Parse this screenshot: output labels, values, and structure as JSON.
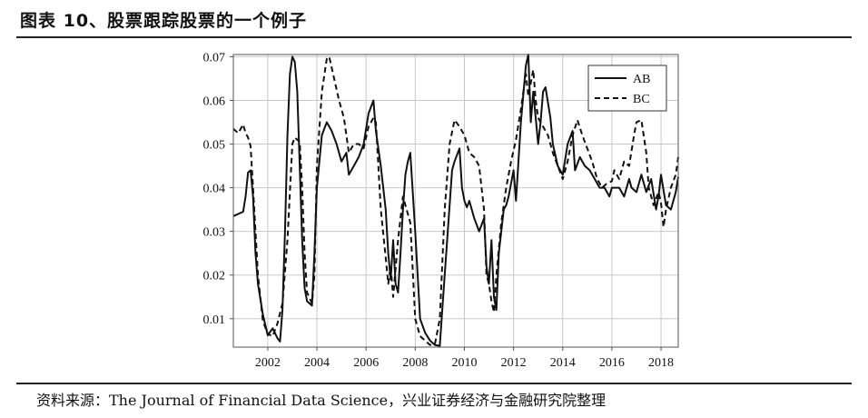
{
  "figure": {
    "title": "图表 10、股票跟踪股票的一个例子",
    "source": "资料来源：The Journal of Financial Data Science，兴业证券经济与金融研究院整理"
  },
  "chart_data": {
    "type": "line",
    "title": "",
    "xlabel": "",
    "ylabel": "",
    "xlim": [
      2000.6,
      2018.7
    ],
    "ylim": [
      0.0035,
      0.0705
    ],
    "x_ticks": [
      "2002",
      "2004",
      "2006",
      "2008",
      "2010",
      "2012",
      "2014",
      "2016",
      "2018"
    ],
    "y_ticks": [
      "0.01",
      "0.02",
      "0.03",
      "0.04",
      "0.05",
      "0.06",
      "0.07"
    ],
    "grid": true,
    "legend_position": "top-right",
    "series": [
      {
        "name": "AB",
        "style": "solid",
        "color": "#111111",
        "x": [
          2000.6,
          2000.8,
          2001.0,
          2001.1,
          2001.2,
          2001.3,
          2001.4,
          2001.5,
          2001.6,
          2001.8,
          2002.0,
          2002.2,
          2002.4,
          2002.5,
          2002.6,
          2002.7,
          2002.8,
          2002.9,
          2003.0,
          2003.1,
          2003.2,
          2003.3,
          2003.4,
          2003.5,
          2003.6,
          2003.8,
          2003.9,
          2004.0,
          2004.2,
          2004.4,
          2004.6,
          2004.8,
          2005.0,
          2005.2,
          2005.3,
          2005.5,
          2005.7,
          2005.9,
          2006.1,
          2006.3,
          2006.4,
          2006.6,
          2006.8,
          2006.9,
          2007.0,
          2007.1,
          2007.2,
          2007.3,
          2007.4,
          2007.5,
          2007.6,
          2007.7,
          2007.8,
          2008.0,
          2008.2,
          2008.4,
          2008.6,
          2008.8,
          2009.0,
          2009.1,
          2009.3,
          2009.5,
          2009.6,
          2009.8,
          2009.9,
          2010.0,
          2010.1,
          2010.2,
          2010.4,
          2010.6,
          2010.8,
          2010.9,
          2011.0,
          2011.1,
          2011.2,
          2011.3,
          2011.4,
          2011.6,
          2011.7,
          2011.8,
          2012.0,
          2012.1,
          2012.3,
          2012.5,
          2012.6,
          2012.7,
          2012.8,
          2012.9,
          2013.0,
          2013.1,
          2013.2,
          2013.3,
          2013.5,
          2013.6,
          2013.8,
          2014.0,
          2014.2,
          2014.4,
          2014.5,
          2014.7,
          2014.9,
          2015.1,
          2015.3,
          2015.5,
          2015.7,
          2015.9,
          2016.0,
          2016.1,
          2016.3,
          2016.5,
          2016.7,
          2016.8,
          2017.0,
          2017.2,
          2017.4,
          2017.6,
          2017.8,
          2017.9,
          2018.0,
          2018.2,
          2018.4,
          2018.6,
          2018.7
        ],
        "y": [
          0.0335,
          0.034,
          0.0345,
          0.038,
          0.0435,
          0.044,
          0.038,
          0.025,
          0.018,
          0.011,
          0.0062,
          0.0078,
          0.0055,
          0.0048,
          0.012,
          0.03,
          0.052,
          0.066,
          0.07,
          0.0688,
          0.062,
          0.045,
          0.028,
          0.017,
          0.014,
          0.013,
          0.025,
          0.04,
          0.052,
          0.055,
          0.053,
          0.05,
          0.046,
          0.048,
          0.043,
          0.045,
          0.047,
          0.05,
          0.057,
          0.06,
          0.053,
          0.045,
          0.035,
          0.025,
          0.019,
          0.028,
          0.018,
          0.016,
          0.025,
          0.035,
          0.043,
          0.046,
          0.048,
          0.03,
          0.01,
          0.0068,
          0.005,
          0.004,
          0.0038,
          0.012,
          0.028,
          0.044,
          0.046,
          0.049,
          0.04,
          0.037,
          0.0355,
          0.037,
          0.033,
          0.03,
          0.033,
          0.022,
          0.018,
          0.028,
          0.015,
          0.012,
          0.025,
          0.035,
          0.036,
          0.038,
          0.044,
          0.037,
          0.055,
          0.068,
          0.0705,
          0.055,
          0.062,
          0.056,
          0.05,
          0.055,
          0.062,
          0.063,
          0.056,
          0.05,
          0.045,
          0.043,
          0.05,
          0.053,
          0.044,
          0.047,
          0.045,
          0.044,
          0.042,
          0.04,
          0.04,
          0.038,
          0.04,
          0.04,
          0.04,
          0.038,
          0.042,
          0.04,
          0.039,
          0.043,
          0.039,
          0.042,
          0.035,
          0.038,
          0.043,
          0.036,
          0.035,
          0.039,
          0.0425
        ]
      },
      {
        "name": "BC",
        "style": "dashed",
        "color": "#111111",
        "x": [
          2000.6,
          2000.8,
          2000.9,
          2001.0,
          2001.1,
          2001.2,
          2001.3,
          2001.4,
          2001.6,
          2001.8,
          2002.0,
          2002.2,
          2002.4,
          2002.6,
          2002.8,
          2003.0,
          2003.1,
          2003.3,
          2003.4,
          2003.5,
          2003.6,
          2003.8,
          2003.9,
          2004.0,
          2004.2,
          2004.4,
          2004.5,
          2004.7,
          2004.9,
          2005.1,
          2005.3,
          2005.5,
          2005.7,
          2005.9,
          2006.1,
          2006.3,
          2006.4,
          2006.6,
          2006.8,
          2006.9,
          2007.0,
          2007.1,
          2007.3,
          2007.5,
          2007.6,
          2007.8,
          2008.0,
          2008.2,
          2008.4,
          2008.6,
          2008.8,
          2009.0,
          2009.2,
          2009.4,
          2009.6,
          2009.8,
          2010.0,
          2010.2,
          2010.4,
          2010.6,
          2010.8,
          2010.9,
          2011.0,
          2011.1,
          2011.2,
          2011.3,
          2011.5,
          2011.7,
          2011.9,
          2012.1,
          2012.3,
          2012.5,
          2012.6,
          2012.8,
          2012.9,
          2013.0,
          2013.2,
          2013.4,
          2013.6,
          2013.8,
          2014.0,
          2014.2,
          2014.4,
          2014.6,
          2014.8,
          2015.0,
          2015.2,
          2015.4,
          2015.6,
          2015.8,
          2016.0,
          2016.1,
          2016.3,
          2016.5,
          2016.7,
          2016.9,
          2017.0,
          2017.2,
          2017.4,
          2017.5,
          2017.7,
          2017.9,
          2018.0,
          2018.1,
          2018.2,
          2018.4,
          2018.6,
          2018.7
        ],
        "y": [
          0.0535,
          0.0525,
          0.0535,
          0.0545,
          0.0525,
          0.0515,
          0.0495,
          0.04,
          0.02,
          0.0095,
          0.0065,
          0.006,
          0.009,
          0.0135,
          0.028,
          0.05,
          0.0515,
          0.0505,
          0.04,
          0.025,
          0.016,
          0.0135,
          0.02,
          0.045,
          0.062,
          0.0695,
          0.07,
          0.065,
          0.06,
          0.056,
          0.048,
          0.05,
          0.05,
          0.049,
          0.054,
          0.056,
          0.055,
          0.035,
          0.024,
          0.018,
          0.022,
          0.015,
          0.028,
          0.038,
          0.036,
          0.032,
          0.01,
          0.006,
          0.005,
          0.004,
          0.0042,
          0.01,
          0.035,
          0.05,
          0.0555,
          0.054,
          0.052,
          0.048,
          0.047,
          0.045,
          0.035,
          0.02,
          0.018,
          0.014,
          0.0115,
          0.02,
          0.032,
          0.04,
          0.046,
          0.051,
          0.058,
          0.066,
          0.061,
          0.067,
          0.06,
          0.056,
          0.054,
          0.052,
          0.048,
          0.045,
          0.042,
          0.046,
          0.052,
          0.0555,
          0.052,
          0.049,
          0.046,
          0.042,
          0.04,
          0.041,
          0.0415,
          0.044,
          0.042,
          0.046,
          0.045,
          0.052,
          0.055,
          0.0555,
          0.048,
          0.04,
          0.036,
          0.039,
          0.0365,
          0.031,
          0.035,
          0.04,
          0.043,
          0.047
        ]
      }
    ]
  }
}
